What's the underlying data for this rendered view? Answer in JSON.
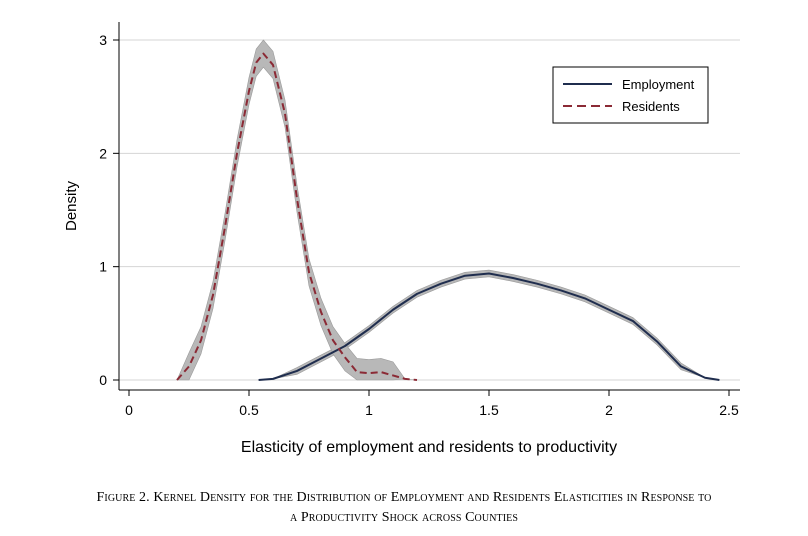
{
  "chart_data": {
    "type": "line",
    "title": "",
    "xlabel": "Elasticity of employment and residents to productivity",
    "ylabel": "Density",
    "xlim": [
      -0.05,
      2.5
    ],
    "ylim": [
      0,
      3.1
    ],
    "xticks": [
      0,
      0.5,
      1,
      1.5,
      2,
      2.5
    ],
    "xtick_labels": [
      "0",
      "0.5",
      "1",
      "1.5",
      "2",
      "2.5"
    ],
    "yticks": [
      0,
      1,
      2,
      3
    ],
    "ytick_labels": [
      "0",
      "1",
      "2",
      "3"
    ],
    "grid": "horizontal",
    "legend_position": "top-right",
    "confidence_band": "gray",
    "series": [
      {
        "name": "Employment",
        "style": "solid",
        "color": "#1f2d4e",
        "x": [
          0.54,
          0.6,
          0.7,
          0.8,
          0.9,
          1.0,
          1.1,
          1.2,
          1.3,
          1.4,
          1.5,
          1.6,
          1.7,
          1.8,
          1.9,
          2.0,
          2.1,
          2.2,
          2.3,
          2.4,
          2.46
        ],
        "y": [
          0.0,
          0.01,
          0.08,
          0.19,
          0.3,
          0.45,
          0.62,
          0.76,
          0.85,
          0.92,
          0.94,
          0.9,
          0.85,
          0.79,
          0.72,
          0.62,
          0.52,
          0.34,
          0.12,
          0.02,
          0.0
        ],
        "band": 0.03
      },
      {
        "name": "Residents",
        "style": "dashed",
        "color": "#8b2a35",
        "x": [
          0.2,
          0.25,
          0.3,
          0.35,
          0.4,
          0.45,
          0.5,
          0.53,
          0.56,
          0.6,
          0.65,
          0.7,
          0.75,
          0.8,
          0.85,
          0.9,
          0.95,
          1.0,
          1.05,
          1.1,
          1.15,
          1.2
        ],
        "y": [
          0.0,
          0.12,
          0.35,
          0.75,
          1.35,
          2.0,
          2.55,
          2.8,
          2.88,
          2.78,
          2.35,
          1.6,
          0.95,
          0.6,
          0.35,
          0.2,
          0.07,
          0.06,
          0.07,
          0.04,
          0.01,
          0.0
        ],
        "band": 0.12
      }
    ]
  },
  "caption": {
    "line1": "Figure 2. Kernel Density for the Distribution of Employment and Residents Elasticities in Response to",
    "line2": "a Productivity Shock across Counties"
  }
}
